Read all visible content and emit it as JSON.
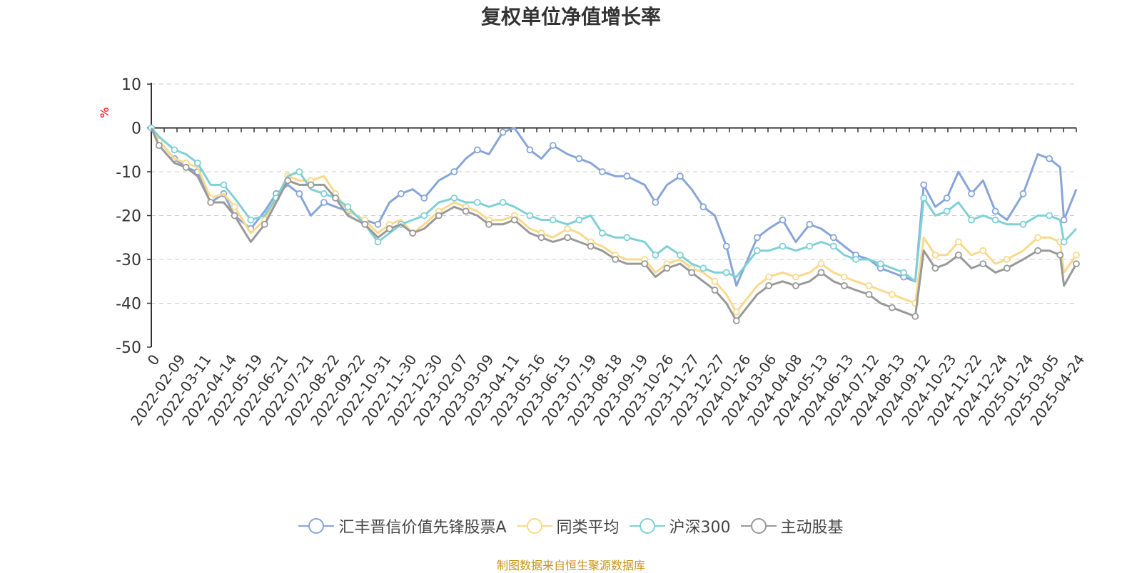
{
  "chart_data": {
    "type": "line",
    "title": "复权单位净值增长率",
    "ylabel": "%",
    "xlabel": "",
    "ylim": [
      -50,
      10
    ],
    "yticks": [
      10,
      0,
      -10,
      -20,
      -30,
      -40,
      -50
    ],
    "grid": true,
    "legend_position": "bottom-center",
    "x_tick_labels": [
      "0",
      "2022-02-09",
      "2022-03-11",
      "2022-04-14",
      "2022-05-19",
      "2022-06-21",
      "2022-07-21",
      "2022-08-22",
      "2022-09-22",
      "2022-10-31",
      "2022-11-30",
      "2022-12-30",
      "2023-02-07",
      "2023-03-09",
      "2023-04-11",
      "2023-05-16",
      "2023-06-15",
      "2023-07-19",
      "2023-08-18",
      "2023-09-19",
      "2023-10-26",
      "2023-11-27",
      "2023-12-27",
      "2024-01-26",
      "2024-03-06",
      "2024-04-08",
      "2024-05-13",
      "2024-06-13",
      "2024-07-12",
      "2024-08-13",
      "2024-09-12",
      "2024-10-23",
      "2024-11-22",
      "2024-12-24",
      "2025-01-24",
      "2025-03-05",
      "2025-04-24"
    ],
    "x": [
      "2022-01-10",
      "2022-01-20",
      "2022-02-09",
      "2022-02-24",
      "2022-03-11",
      "2022-03-28",
      "2022-04-14",
      "2022-04-28",
      "2022-05-19",
      "2022-06-06",
      "2022-06-21",
      "2022-07-06",
      "2022-07-21",
      "2022-08-05",
      "2022-08-22",
      "2022-09-06",
      "2022-09-22",
      "2022-10-14",
      "2022-10-31",
      "2022-11-15",
      "2022-11-30",
      "2022-12-15",
      "2022-12-30",
      "2023-01-18",
      "2023-02-07",
      "2023-02-22",
      "2023-03-09",
      "2023-03-24",
      "2023-04-11",
      "2023-04-26",
      "2023-05-16",
      "2023-05-31",
      "2023-06-15",
      "2023-07-04",
      "2023-07-19",
      "2023-08-03",
      "2023-08-18",
      "2023-09-04",
      "2023-09-19",
      "2023-10-12",
      "2023-10-26",
      "2023-11-10",
      "2023-11-27",
      "2023-12-12",
      "2023-12-27",
      "2024-01-11",
      "2024-01-26",
      "2024-02-08",
      "2024-03-06",
      "2024-03-21",
      "2024-04-08",
      "2024-04-25",
      "2024-05-13",
      "2024-05-28",
      "2024-06-13",
      "2024-06-27",
      "2024-07-12",
      "2024-07-29",
      "2024-08-13",
      "2024-08-28",
      "2024-09-12",
      "2024-09-27",
      "2024-10-08",
      "2024-10-23",
      "2024-11-07",
      "2024-11-22",
      "2024-12-09",
      "2024-12-24",
      "2025-01-09",
      "2025-01-24",
      "2025-02-14",
      "2025-03-05",
      "2025-03-20",
      "2025-04-03",
      "2025-04-08",
      "2025-04-24"
    ],
    "series": [
      {
        "name": "汇丰晋信价值先锋股票A",
        "color": "#87a5d8",
        "values": [
          0,
          -3,
          -7,
          -9,
          -10,
          -17,
          -15,
          -20,
          -23,
          -19,
          -15,
          -13,
          -15,
          -20,
          -17,
          -18,
          -19,
          -21,
          -22,
          -17,
          -15,
          -14,
          -16,
          -12,
          -10,
          -7,
          -5,
          -6,
          -1,
          0,
          -5,
          -7,
          -4,
          -6,
          -7,
          -8,
          -10,
          -11,
          -11,
          -13,
          -17,
          -13,
          -11,
          -14,
          -18,
          -20,
          -27,
          -36,
          -25,
          -23,
          -21,
          -26,
          -22,
          -23,
          -25,
          -27,
          -29,
          -30,
          -32,
          -33,
          -34,
          -35,
          -13,
          -18,
          -16,
          -10,
          -15,
          -12,
          -19,
          -21,
          -15,
          -6,
          -7,
          -9,
          -21,
          -14
        ]
      },
      {
        "name": "同类平均",
        "color": "#f9d98c",
        "values": [
          0,
          -3,
          -7,
          -8,
          -9,
          -16,
          -15,
          -18,
          -24,
          -21,
          -16,
          -11,
          -12,
          -12,
          -11,
          -15,
          -19,
          -21,
          -24,
          -22,
          -21,
          -24,
          -22,
          -19,
          -17,
          -18,
          -19,
          -21,
          -21,
          -20,
          -23,
          -24,
          -25,
          -23,
          -24,
          -26,
          -27,
          -29,
          -30,
          -30,
          -33,
          -31,
          -30,
          -32,
          -33,
          -35,
          -38,
          -42,
          -36,
          -34,
          -33,
          -34,
          -33,
          -31,
          -33,
          -34,
          -35,
          -36,
          -37,
          -38,
          -39,
          -40,
          -25,
          -29,
          -29,
          -26,
          -29,
          -28,
          -31,
          -30,
          -28,
          -25,
          -25,
          -26,
          -33,
          -29
        ]
      },
      {
        "name": "沪深300",
        "color": "#7fd0d6",
        "values": [
          0,
          -2,
          -5,
          -6,
          -8,
          -13,
          -13,
          -16,
          -21,
          -20,
          -16,
          -11,
          -10,
          -14,
          -15,
          -16,
          -18,
          -22,
          -26,
          -24,
          -22,
          -21,
          -20,
          -17,
          -16,
          -17,
          -17,
          -18,
          -17,
          -18,
          -20,
          -21,
          -21,
          -22,
          -21,
          -20,
          -24,
          -25,
          -25,
          -26,
          -29,
          -27,
          -29,
          -31,
          -32,
          -33,
          -33,
          -34,
          -28,
          -28,
          -27,
          -28,
          -27,
          -26,
          -27,
          -29,
          -30,
          -30,
          -31,
          -32,
          -33,
          -35,
          -16,
          -20,
          -19,
          -17,
          -21,
          -20,
          -21,
          -22,
          -22,
          -20,
          -20,
          -21,
          -26,
          -23
        ]
      },
      {
        "name": "主动股基",
        "color": "#999999",
        "values": [
          0,
          -4,
          -8,
          -9,
          -11,
          -17,
          -17,
          -20,
          -26,
          -22,
          -17,
          -12,
          -13,
          -13,
          -13,
          -16,
          -20,
          -22,
          -25,
          -23,
          -22,
          -24,
          -23,
          -20,
          -18,
          -19,
          -20,
          -22,
          -22,
          -21,
          -24,
          -25,
          -26,
          -25,
          -26,
          -27,
          -28,
          -30,
          -31,
          -31,
          -34,
          -32,
          -31,
          -33,
          -35,
          -37,
          -40,
          -44,
          -38,
          -36,
          -35,
          -36,
          -35,
          -33,
          -35,
          -36,
          -37,
          -38,
          -40,
          -41,
          -42,
          -43,
          -28,
          -32,
          -31,
          -29,
          -32,
          -31,
          -33,
          -32,
          -30,
          -28,
          -28,
          -29,
          -36,
          -31
        ]
      }
    ]
  },
  "source_note": "制图数据来自恒生聚源数据库"
}
